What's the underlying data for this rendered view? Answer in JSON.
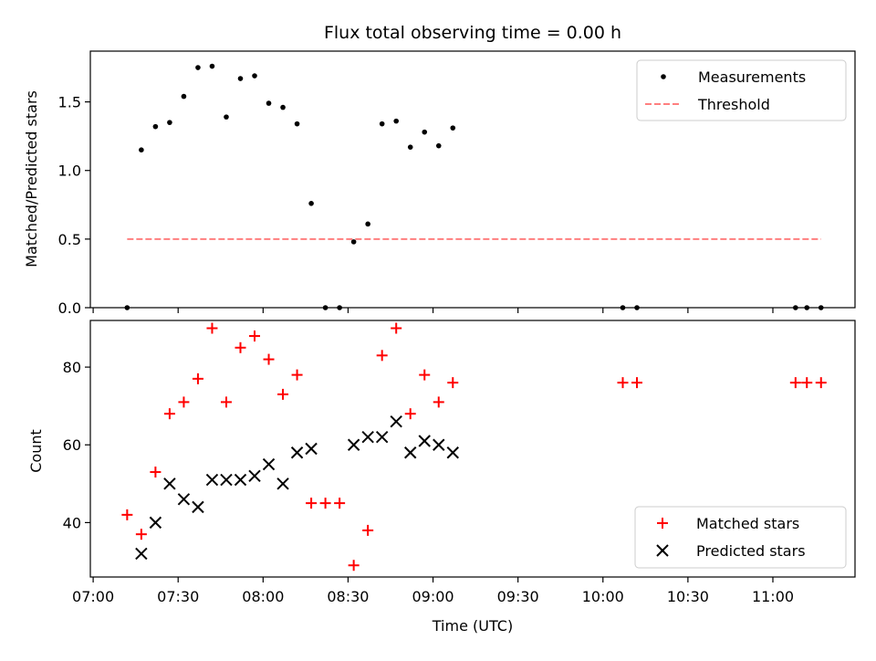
{
  "chart_data": [
    {
      "type": "scatter",
      "title": "Flux total observing time = 0.00 h",
      "xlabel": "",
      "ylabel": "Matched/Predicted stars",
      "ylim": [
        0,
        1.87
      ],
      "yticks": [
        "0.0",
        "0.5",
        "1.0",
        "1.5"
      ],
      "legend": {
        "position": "top-right",
        "entries": [
          "Measurements",
          "Threshold"
        ]
      },
      "series": [
        {
          "name": "Measurements",
          "marker": "dot",
          "color": "#000000",
          "points": [
            [
              "07:12",
              0.0
            ],
            [
              "07:17",
              1.15
            ],
            [
              "07:22",
              1.32
            ],
            [
              "07:27",
              1.35
            ],
            [
              "07:32",
              1.54
            ],
            [
              "07:37",
              1.75
            ],
            [
              "07:42",
              1.76
            ],
            [
              "07:47",
              1.39
            ],
            [
              "07:52",
              1.67
            ],
            [
              "07:57",
              1.69
            ],
            [
              "08:02",
              1.49
            ],
            [
              "08:07",
              1.46
            ],
            [
              "08:12",
              1.34
            ],
            [
              "08:17",
              0.76
            ],
            [
              "08:22",
              0.0
            ],
            [
              "08:27",
              0.0
            ],
            [
              "08:32",
              0.48
            ],
            [
              "08:37",
              0.61
            ],
            [
              "08:42",
              1.34
            ],
            [
              "08:47",
              1.36
            ],
            [
              "08:52",
              1.17
            ],
            [
              "08:57",
              1.28
            ],
            [
              "09:02",
              1.18
            ],
            [
              "09:07",
              1.31
            ],
            [
              "10:07",
              0.0
            ],
            [
              "10:12",
              0.0
            ],
            [
              "11:08",
              0.0
            ],
            [
              "11:12",
              0.0
            ],
            [
              "11:17",
              0.0
            ]
          ]
        },
        {
          "name": "Threshold",
          "marker": "dashed-line",
          "color": "#ff7f7f",
          "points": [
            [
              "07:12",
              0.5
            ],
            [
              "11:17",
              0.5
            ]
          ]
        }
      ]
    },
    {
      "type": "scatter",
      "title": "",
      "xlabel": "Time (UTC)",
      "ylabel": "Count",
      "ylim": [
        26,
        92
      ],
      "yticks": [
        "40",
        "60",
        "80"
      ],
      "xlim": [
        "06:59",
        "11:29"
      ],
      "xticks": [
        "07:00",
        "07:30",
        "08:00",
        "08:30",
        "09:00",
        "09:30",
        "10:00",
        "10:30",
        "11:00"
      ],
      "legend": {
        "position": "bottom-right",
        "entries": [
          "Matched stars",
          "Predicted stars"
        ]
      },
      "series": [
        {
          "name": "Matched stars",
          "marker": "plus",
          "color": "#ff0000",
          "points": [
            [
              "07:12",
              42
            ],
            [
              "07:17",
              37
            ],
            [
              "07:22",
              53
            ],
            [
              "07:27",
              68
            ],
            [
              "07:32",
              71
            ],
            [
              "07:37",
              77
            ],
            [
              "07:42",
              90
            ],
            [
              "07:47",
              71
            ],
            [
              "07:52",
              85
            ],
            [
              "07:57",
              88
            ],
            [
              "08:02",
              82
            ],
            [
              "08:07",
              73
            ],
            [
              "08:12",
              78
            ],
            [
              "08:17",
              45
            ],
            [
              "08:22",
              45
            ],
            [
              "08:27",
              45
            ],
            [
              "08:32",
              29
            ],
            [
              "08:37",
              38
            ],
            [
              "08:42",
              83
            ],
            [
              "08:47",
              90
            ],
            [
              "08:52",
              68
            ],
            [
              "08:57",
              78
            ],
            [
              "09:02",
              71
            ],
            [
              "09:07",
              76
            ],
            [
              "10:07",
              76
            ],
            [
              "10:12",
              76
            ],
            [
              "11:08",
              76
            ],
            [
              "11:12",
              76
            ],
            [
              "11:17",
              76
            ]
          ]
        },
        {
          "name": "Predicted stars",
          "marker": "x",
          "color": "#000000",
          "points": [
            [
              "07:17",
              32
            ],
            [
              "07:22",
              40
            ],
            [
              "07:27",
              50
            ],
            [
              "07:32",
              46
            ],
            [
              "07:37",
              44
            ],
            [
              "07:42",
              51
            ],
            [
              "07:47",
              51
            ],
            [
              "07:52",
              51
            ],
            [
              "07:57",
              52
            ],
            [
              "08:02",
              55
            ],
            [
              "08:07",
              50
            ],
            [
              "08:12",
              58
            ],
            [
              "08:17",
              59
            ],
            [
              "08:32",
              60
            ],
            [
              "08:37",
              62
            ],
            [
              "08:42",
              62
            ],
            [
              "08:47",
              66
            ],
            [
              "08:52",
              58
            ],
            [
              "08:57",
              61
            ],
            [
              "09:02",
              60
            ],
            [
              "09:07",
              58
            ]
          ]
        }
      ]
    }
  ]
}
